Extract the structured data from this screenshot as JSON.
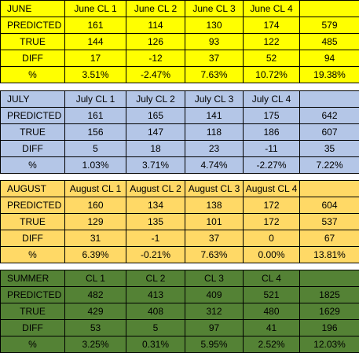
{
  "blocks": [
    {
      "id": "june",
      "header": [
        "JUNE",
        "June CL 1",
        "June CL 2",
        "June CL 3",
        "June CL 4",
        ""
      ],
      "rows": [
        [
          "PREDICTED",
          "161",
          "114",
          "130",
          "174",
          "579"
        ],
        [
          "TRUE",
          "144",
          "126",
          "93",
          "122",
          "485"
        ],
        [
          "DIFF",
          "17",
          "-12",
          "37",
          "52",
          "94"
        ],
        [
          "%",
          "3.51%",
          "-2.47%",
          "7.63%",
          "10.72%",
          "19.38%"
        ]
      ],
      "color": "#ffff00"
    },
    {
      "id": "july",
      "header": [
        "JULY",
        "July CL 1",
        "July CL 2",
        "July CL 3",
        "July CL 4",
        ""
      ],
      "rows": [
        [
          "PREDICTED",
          "161",
          "165",
          "141",
          "175",
          "642"
        ],
        [
          "TRUE",
          "156",
          "147",
          "118",
          "186",
          "607"
        ],
        [
          "DIFF",
          "5",
          "18",
          "23",
          "-11",
          "35"
        ],
        [
          "%",
          "1.03%",
          "3.71%",
          "4.74%",
          "-2.27%",
          "7.22%"
        ]
      ],
      "color": "#b4c6e7"
    },
    {
      "id": "aug",
      "header": [
        "AUGUST",
        "August CL 1",
        "August CL 2",
        "August CL 3",
        "August CL 4",
        ""
      ],
      "rows": [
        [
          "PREDICTED",
          "160",
          "134",
          "138",
          "172",
          "604"
        ],
        [
          "TRUE",
          "129",
          "135",
          "101",
          "172",
          "537"
        ],
        [
          "DIFF",
          "31",
          "-1",
          "37",
          "0",
          "67"
        ],
        [
          "%",
          "6.39%",
          "-0.21%",
          "7.63%",
          "0.00%",
          "13.81%"
        ]
      ],
      "color": "#ffd966"
    },
    {
      "id": "sum",
      "header": [
        "SUMMER",
        "CL 1",
        "CL 2",
        "CL 3",
        "CL 4",
        ""
      ],
      "rows": [
        [
          "PREDICTED",
          "482",
          "413",
          "409",
          "521",
          "1825"
        ],
        [
          "TRUE",
          "429",
          "408",
          "312",
          "480",
          "1629"
        ],
        [
          "DIFF",
          "53",
          "5",
          "97",
          "41",
          "196"
        ],
        [
          "%",
          "3.25%",
          "0.31%",
          "5.95%",
          "2.52%",
          "12.03%"
        ]
      ],
      "color": "#548235"
    }
  ]
}
